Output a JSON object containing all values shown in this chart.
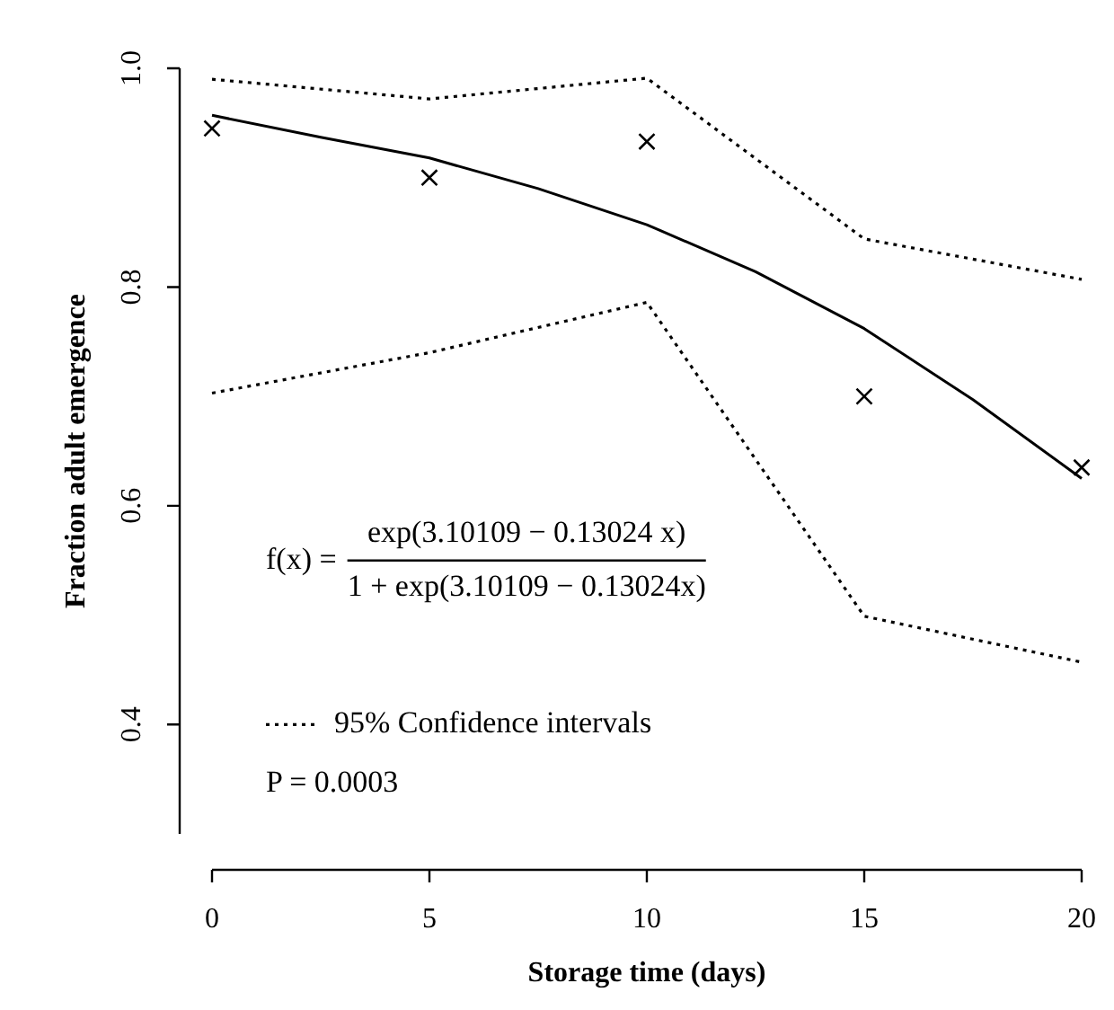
{
  "chart_data": {
    "type": "line",
    "xlabel": "Storage time (days)",
    "ylabel": "Fraction adult emergence",
    "xlim": [
      0,
      20
    ],
    "xticks": [
      0,
      5,
      10,
      15,
      20
    ],
    "ylim": [
      0.3,
      1.0
    ],
    "yticks": [
      0.4,
      0.6,
      0.8,
      {
        "value": 1,
        "label": "1.0"
      }
    ],
    "grid": false,
    "legend": "bottom left",
    "series": [
      {
        "type": "scatter",
        "color": "#000000",
        "marker": "cross",
        "x": [
          0,
          5,
          10,
          15,
          20
        ],
        "values": [
          0.945,
          0.9,
          0.933,
          0.7,
          0.635
        ]
      },
      {
        "color": "#000000",
        "line_style": "solid",
        "marker": "none",
        "x": [
          0,
          2.5,
          5,
          7.5,
          10,
          12.5,
          15,
          17.5,
          20
        ],
        "values": [
          0.957,
          0.937,
          0.918,
          0.89,
          0.857,
          0.814,
          0.762,
          0.697,
          0.625
        ]
      },
      {
        "name": "95% Confidence intervals",
        "color": "#000000",
        "line_style": "dotted",
        "marker": "none",
        "x": [
          0,
          5,
          10,
          15,
          20
        ],
        "values": [
          0.99,
          0.972,
          0.991,
          0.844,
          0.807
        ]
      },
      {
        "color": "#000000",
        "line_style": "dotted",
        "marker": "none",
        "x": [
          0,
          5,
          10,
          15,
          20
        ],
        "values": [
          0.703,
          0.74,
          0.786,
          0.499,
          0.457
        ]
      }
    ],
    "annotations": [
      "f(x) =",
      "exp(3.10109 − 0.13024 x)",
      "1 + exp(3.10109 − 0.13024x)",
      "P = 0.0003"
    ]
  }
}
